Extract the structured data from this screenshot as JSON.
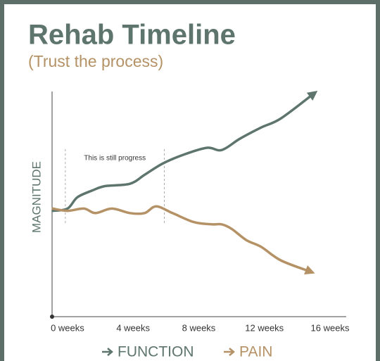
{
  "chart_data": {
    "type": "line",
    "title": "Rehab Timeline",
    "subtitle": "(Trust the process)",
    "y_label": "MAGNITUDE",
    "xlim": [
      -0.94,
      16.9
    ],
    "ylim": [
      0,
      10
    ],
    "xticks": [
      {
        "value": 0,
        "label": "0 weeks"
      },
      {
        "value": 4,
        "label": "4 weeks"
      },
      {
        "value": 8,
        "label": "8 weeks"
      },
      {
        "value": 12,
        "label": "12 weeks"
      },
      {
        "value": 16,
        "label": "16 weeks"
      }
    ],
    "annotation": {
      "text": "This is still progress",
      "x": [
        -0.13,
        5.9
      ]
    },
    "series": [
      {
        "name": "FUNCTION",
        "color": "#5e756d",
        "x": [
          -0.9,
          0,
          0.6,
          1.5,
          2.3,
          3.8,
          4.7,
          5.8,
          7.1,
          8.5,
          9.4,
          10.5,
          11.8,
          13.0,
          15.0
        ],
        "values": [
          4.7,
          4.8,
          5.3,
          5.6,
          5.8,
          5.9,
          6.3,
          6.8,
          7.2,
          7.5,
          7.4,
          7.9,
          8.4,
          8.8,
          9.9
        ]
      },
      {
        "name": "PAIN",
        "color": "#b59266",
        "x": [
          -0.9,
          0,
          1.0,
          1.7,
          2.7,
          3.8,
          4.7,
          5.4,
          6.4,
          7.7,
          8.8,
          9.4,
          10.0,
          10.9,
          11.8,
          13.0,
          14.8
        ],
        "values": [
          4.8,
          4.7,
          4.8,
          4.6,
          4.8,
          4.6,
          4.6,
          4.9,
          4.6,
          4.2,
          4.1,
          4.1,
          3.9,
          3.4,
          3.1,
          2.5,
          2.0
        ]
      }
    ]
  }
}
